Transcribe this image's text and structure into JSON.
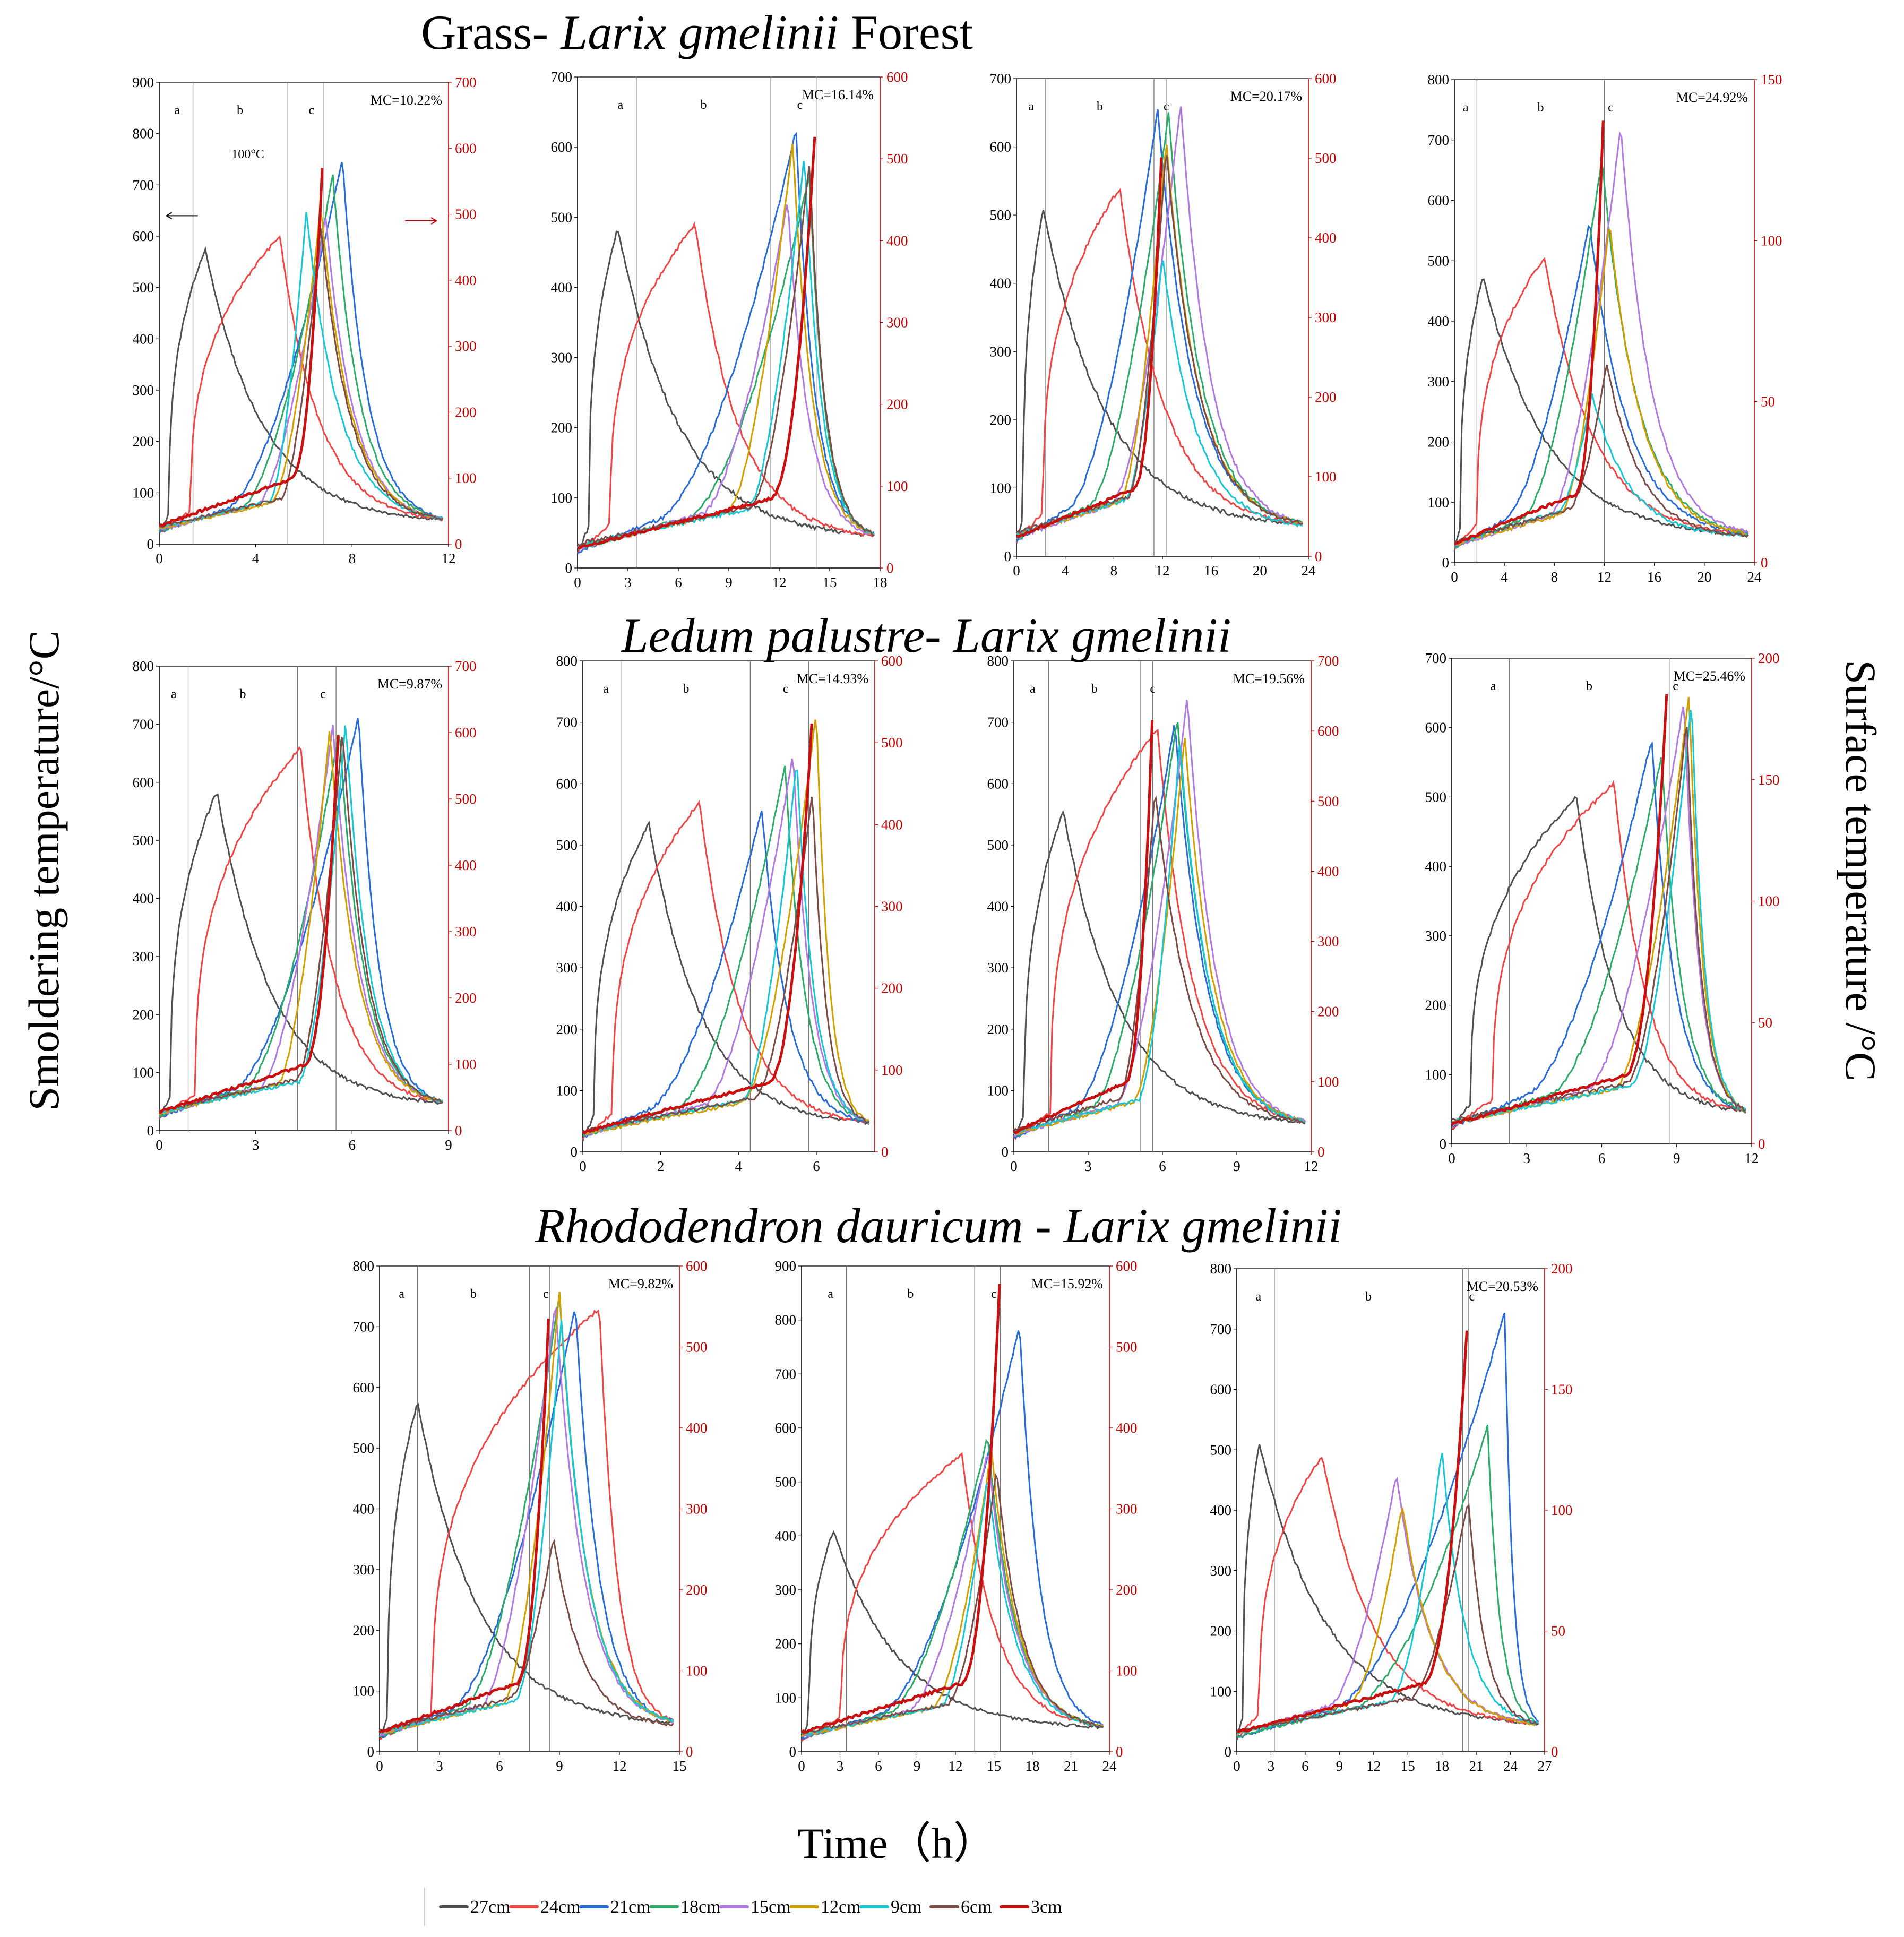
{
  "figure": {
    "ylabel_left": "Smoldering temperature/°C",
    "ylabel_right": "Surface temperature /°C",
    "xlabel": "Time（h）",
    "section_titles": [
      {
        "plain": "Grass- ",
        "italic": "Larix gmelinii",
        "rest": " Forest"
      },
      {
        "plain": "",
        "italic": "Ledum palustre- Larix gmelinii",
        "rest": ""
      },
      {
        "plain": "",
        "italic": "Rhododendron dauricum - Larix gmelinii",
        "rest": ""
      }
    ],
    "stage_labels": [
      "a",
      "b",
      "c"
    ],
    "annotation_100c": "100°C"
  },
  "legend": [
    {
      "name": "27cm",
      "color": "#505050"
    },
    {
      "name": "24cm",
      "color": "#f04545"
    },
    {
      "name": "21cm",
      "color": "#2a6cd6"
    },
    {
      "name": "18cm",
      "color": "#2eaa6a"
    },
    {
      "name": "15cm",
      "color": "#b07ae0"
    },
    {
      "name": "12cm",
      "color": "#d1a000"
    },
    {
      "name": "9cm",
      "color": "#18c7d3"
    },
    {
      "name": "6cm",
      "color": "#7b4b45"
    },
    {
      "name": "3cm",
      "color": "#c81010"
    }
  ],
  "chart_data": [
    {
      "type": "line",
      "mc": "MC=10.22%",
      "xmax": 12,
      "xstep": 4,
      "ylim": [
        0,
        900
      ],
      "ystep": 100,
      "y2lim": [
        0,
        700
      ],
      "y2step": 100,
      "stages": [
        1.4,
        5.3,
        6.8
      ],
      "peaks": [
        {
          "t": 1.9,
          "v": 575
        },
        {
          "t": 5.0,
          "v": 600
        },
        {
          "t": 7.6,
          "v": 750
        },
        {
          "t": 7.2,
          "v": 720
        },
        {
          "t": 6.9,
          "v": 640
        },
        {
          "t": 6.7,
          "v": 660
        },
        {
          "t": 6.1,
          "v": 650
        },
        {
          "t": 6.7,
          "v": 620
        }
      ],
      "ramp_start": 0.2,
      "surface_peak": {
        "t": 6.8,
        "v": 600
      }
    },
    {
      "type": "line",
      "mc": "MC=16.14%",
      "xmax": 18,
      "xstep": 3,
      "ylim": [
        0,
        700
      ],
      "ystep": 100,
      "y2lim": [
        0,
        600
      ],
      "y2step": 100,
      "stages": [
        3.5,
        11.5,
        14.2
      ],
      "peaks": [
        {
          "t": 2.4,
          "v": 485
        },
        {
          "t": 7.0,
          "v": 490
        },
        {
          "t": 13.0,
          "v": 625
        },
        {
          "t": 13.8,
          "v": 560
        },
        {
          "t": 12.5,
          "v": 525
        },
        {
          "t": 12.8,
          "v": 610
        },
        {
          "t": 13.5,
          "v": 590
        },
        {
          "t": 13.8,
          "v": 580
        }
      ],
      "ramp_start": 0.4,
      "surface_peak": {
        "t": 14.2,
        "v": 560
      }
    },
    {
      "type": "line",
      "mc": "MC=20.17%",
      "xmax": 24,
      "xstep": 4,
      "ylim": [
        0,
        700
      ],
      "ystep": 100,
      "y2lim": [
        0,
        600
      ],
      "y2step": 100,
      "stages": [
        2.4,
        11.3,
        12.3
      ],
      "peaks": [
        {
          "t": 2.2,
          "v": 510
        },
        {
          "t": 8.5,
          "v": 540
        },
        {
          "t": 11.6,
          "v": 655
        },
        {
          "t": 12.5,
          "v": 650
        },
        {
          "t": 13.5,
          "v": 665
        },
        {
          "t": 12.3,
          "v": 610
        },
        {
          "t": 12.0,
          "v": 440
        },
        {
          "t": 12.3,
          "v": 600
        }
      ],
      "ramp_start": 0.3,
      "surface_peak": {
        "t": 12.0,
        "v": 540
      }
    },
    {
      "type": "line",
      "mc": "MC=24.92%",
      "xmax": 24,
      "xstep": 4,
      "ylim": [
        0,
        800
      ],
      "ystep": 100,
      "y2lim": [
        0,
        150
      ],
      "y2step": 50,
      "stages": [
        1.8,
        12.0,
        12.0
      ],
      "peaks": [
        {
          "t": 2.3,
          "v": 475
        },
        {
          "t": 7.2,
          "v": 505
        },
        {
          "t": 10.8,
          "v": 565
        },
        {
          "t": 11.8,
          "v": 670
        },
        {
          "t": 13.3,
          "v": 725
        },
        {
          "t": 12.4,
          "v": 565
        },
        {
          "t": 11.0,
          "v": 280
        },
        {
          "t": 12.2,
          "v": 330
        }
      ],
      "ramp_start": 0.2,
      "surface_peak": {
        "t": 12.0,
        "v": 148
      }
    },
    {
      "type": "line",
      "mc": "MC=9.87%",
      "xmax": 9,
      "xstep": 3,
      "ylim": [
        0,
        800
      ],
      "ystep": 100,
      "y2lim": [
        0,
        700
      ],
      "y2step": 100,
      "stages": [
        0.9,
        4.3,
        5.5
      ],
      "peaks": [
        {
          "t": 1.8,
          "v": 585
        },
        {
          "t": 4.4,
          "v": 660
        },
        {
          "t": 6.2,
          "v": 715
        },
        {
          "t": 5.6,
          "v": 690
        },
        {
          "t": 5.4,
          "v": 700
        },
        {
          "t": 5.3,
          "v": 690
        },
        {
          "t": 5.8,
          "v": 705
        },
        {
          "t": 5.7,
          "v": 690
        }
      ],
      "ramp_start": 0.15,
      "surface_peak": {
        "t": 5.6,
        "v": 630
      }
    },
    {
      "type": "line",
      "mc": "MC=14.93%",
      "xmax": 7.5,
      "xstep": 2,
      "ylim": [
        0,
        800
      ],
      "ystep": 100,
      "y2lim": [
        0,
        600
      ],
      "y2step": 100,
      "stages": [
        1.0,
        4.3,
        5.8
      ],
      "peaks": [
        {
          "t": 1.7,
          "v": 535
        },
        {
          "t": 3.0,
          "v": 570
        },
        {
          "t": 4.6,
          "v": 560
        },
        {
          "t": 5.2,
          "v": 630
        },
        {
          "t": 5.4,
          "v": 650
        },
        {
          "t": 6.0,
          "v": 720
        },
        {
          "t": 5.5,
          "v": 640
        },
        {
          "t": 5.9,
          "v": 590
        }
      ],
      "ramp_start": 0.1,
      "surface_peak": {
        "t": 5.9,
        "v": 540
      }
    },
    {
      "type": "line",
      "mc": "MC=19.56%",
      "xmax": 12,
      "xstep": 3,
      "ylim": [
        0,
        800
      ],
      "ystep": 100,
      "y2lim": [
        0,
        700
      ],
      "y2step": 100,
      "stages": [
        1.4,
        5.1,
        5.6
      ],
      "peaks": [
        {
          "t": 2.0,
          "v": 555
        },
        {
          "t": 5.8,
          "v": 690
        },
        {
          "t": 6.5,
          "v": 700
        },
        {
          "t": 6.6,
          "v": 710
        },
        {
          "t": 7.0,
          "v": 745
        },
        {
          "t": 6.9,
          "v": 680
        },
        {
          "t": 6.7,
          "v": 670
        },
        {
          "t": 5.7,
          "v": 590
        }
      ],
      "ramp_start": 0.2,
      "surface_peak": {
        "t": 5.6,
        "v": 630
      }
    },
    {
      "type": "line",
      "mc": "MC=25.46%",
      "xmax": 12,
      "xstep": 3,
      "ylim": [
        0,
        700
      ],
      "ystep": 100,
      "y2lim": [
        0,
        200
      ],
      "y2step": 50,
      "stages": [
        2.3,
        8.7,
        8.7
      ],
      "peaks": [
        {
          "t": 5.0,
          "v": 500
        },
        {
          "t": 6.5,
          "v": 520
        },
        {
          "t": 8.0,
          "v": 585
        },
        {
          "t": 8.4,
          "v": 560
        },
        {
          "t": 9.3,
          "v": 640
        },
        {
          "t": 9.5,
          "v": 650
        },
        {
          "t": 9.6,
          "v": 640
        },
        {
          "t": 9.4,
          "v": 610
        }
      ],
      "ramp_start": 0.2,
      "surface_peak": {
        "t": 8.6,
        "v": 185
      }
    },
    {
      "type": "line",
      "mc": "MC=9.82%",
      "xmax": 15,
      "xstep": 3,
      "ylim": [
        0,
        800
      ],
      "ystep": 100,
      "y2lim": [
        0,
        600
      ],
      "y2step": 100,
      "stages": [
        1.9,
        7.5,
        8.5
      ],
      "peaks": [
        {
          "t": 1.9,
          "v": 575
        },
        {
          "t": 11.0,
          "v": 730
        },
        {
          "t": 9.8,
          "v": 735
        },
        {
          "t": 9.0,
          "v": 755
        },
        {
          "t": 8.8,
          "v": 740
        },
        {
          "t": 9.0,
          "v": 760
        },
        {
          "t": 9.1,
          "v": 715
        },
        {
          "t": 8.7,
          "v": 355
        }
      ],
      "ramp_start": 0.2,
      "surface_peak": {
        "t": 8.5,
        "v": 565
      }
    },
    {
      "type": "line",
      "mc": "MC=15.92%",
      "xmax": 24,
      "xstep": 3,
      "ylim": [
        0,
        900
      ],
      "ystep": 100,
      "y2lim": [
        0,
        600
      ],
      "y2step": 100,
      "stages": [
        3.5,
        13.5,
        15.5
      ],
      "peaks": [
        {
          "t": 2.5,
          "v": 410
        },
        {
          "t": 12.5,
          "v": 550
        },
        {
          "t": 17.0,
          "v": 790
        },
        {
          "t": 14.5,
          "v": 585
        },
        {
          "t": 14.5,
          "v": 560
        },
        {
          "t": 14.8,
          "v": 560
        },
        {
          "t": 14.5,
          "v": 510
        },
        {
          "t": 15.2,
          "v": 525
        }
      ],
      "ramp_start": 0.3,
      "surface_peak": {
        "t": 15.5,
        "v": 600
      }
    },
    {
      "type": "line",
      "mc": "MC=20.53%",
      "xmax": 27,
      "xstep": 3,
      "ylim": [
        0,
        800
      ],
      "ystep": 100,
      "y2lim": [
        0,
        200
      ],
      "y2step": 50,
      "stages": [
        3.3,
        19.8,
        20.3
      ],
      "peaks": [
        {
          "t": 2.0,
          "v": 510
        },
        {
          "t": 7.5,
          "v": 490
        },
        {
          "t": 23.5,
          "v": 730
        },
        {
          "t": 22.0,
          "v": 540
        },
        {
          "t": 14.0,
          "v": 460
        },
        {
          "t": 14.5,
          "v": 410
        },
        {
          "t": 18.0,
          "v": 500
        },
        {
          "t": 20.3,
          "v": 420
        }
      ],
      "ramp_start": 0.3,
      "surface_peak": {
        "t": 20.3,
        "v": 185
      }
    }
  ]
}
